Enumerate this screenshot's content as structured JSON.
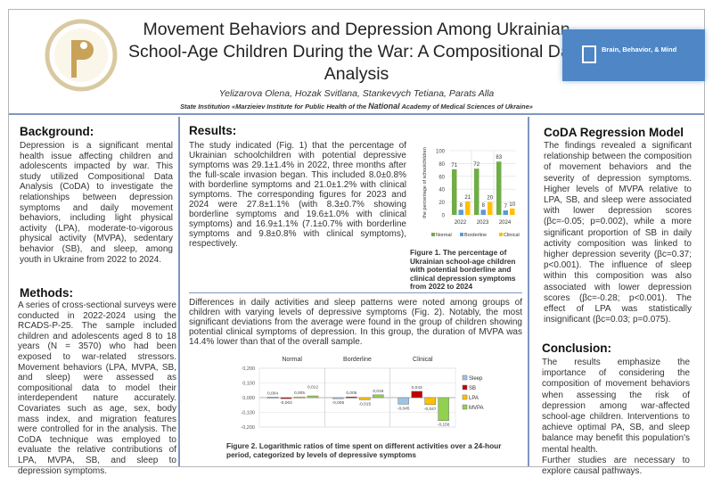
{
  "header": {
    "title": "Movement Behaviors and Depression Among Ukrainian School-Age Children During the War: A Compositional Data Analysis",
    "authors": "Yelizarova Olena, Hozak Svitlana, Stankevych Tetiana, Parats Alla",
    "affiliation_pre": "State Institution «Marzieiev Institute for Public Health of the ",
    "affiliation_mid": "National",
    "affiliation_post": " Academy of Medical Sciences of Ukraine»",
    "journal_logo": "Brain, Behavior, & Mind"
  },
  "background": {
    "heading": "Background:",
    "text": "Depression is a significant mental health issue affecting children and adolescents impacted by war. This study utilized Compositional Data Analysis (CoDA) to investigate the relationships between depression symptoms and daily movement behaviors, including light physical activity (LPA), moderate-to-vigorous physical activity (MVPA), sedentary behavior (SB), and sleep, among youth in Ukraine from 2022 to 2024."
  },
  "methods": {
    "heading": "Methods:",
    "text": "A series of cross-sectional surveys were conducted in 2022-2024 using the RCADS-P-25. The sample included children and adolescents aged 8 to 18 years (N = 3570) who had been exposed to war-related stressors. Movement behaviors (LPA, MVPA, SB, and sleep) were assessed as compositional data to model their interdependent nature accurately. Covariates such as age, sex, body mass index, and migration features were controlled for in the analysis. The CoDA technique was employed to evaluate the relative contributions of LPA, MVPA, SB, and sleep to depression symptoms."
  },
  "results": {
    "heading": "Results:",
    "text1": "The study indicated (Fig. 1) that the percentage of Ukrainian schoolchildren with potential depressive symptoms was 29.1±1.4% in 2022, three months after the full-scale invasion began. This included 8.0±0.8% with borderline symptoms and 21.0±1.2% with clinical symptoms. The corresponding figures for 2023 and 2024 were 27.8±1.1% (with 8.3±0.7% showing borderline symptoms and 19.6±1.0% with clinical symptoms) and 16.9±1.1% (7.1±0.7% with borderline symptoms and 9.8±0.8% with clinical symptoms), respectively.",
    "text2": "Differences in daily activities and sleep patterns were noted among groups of children with varying levels of depressive symptoms (Fig. 2). Notably, the most significant deviations from the average were found in the group of children showing potential clinical symptoms of depression. In this group, the duration of MVPA was 14.4% lower than that of the overall sample.",
    "fig1_caption_label": "Figure 1.",
    "fig1_caption": " The percentage of Ukrainian school-age children with potential borderline and clinical depression symptoms from 2022 to 2024",
    "fig2_caption_label": "Figure 2.",
    "fig2_caption": " Logarithmic ratios of time spent on different activities over a 24-hour period, categorized by levels of depressive symptoms"
  },
  "coda": {
    "heading": "CoDA Regression Model",
    "text": "The findings revealed a significant relationship between the composition of movement behaviors and the severity of depression symptoms. Higher levels of MVPA relative to LPA, SB, and sleep were associated with lower depression scores (βc=-0.05; p=0.002), while a more significant proportion of SB in daily activity composition was linked to higher depression severity (βc=0.37; p<0.001). The influence of sleep within this composition was also associated with lower depression scores (βc=-0.28; p<0.001). The effect of LPA was statistically insignificant (βc=0.03; p=0.075)."
  },
  "conclusion": {
    "heading": "Conclusion:",
    "text": "The results emphasize the importance of considering the composition of movement behaviors when assessing the risk of depression among war-affected school-age children. Interventions to achieve optimal PA, SB, and sleep balance may benefit this population's mental health.",
    "text2": "Further studies are necessary to explore causal pathways."
  },
  "chart_data": [
    {
      "type": "bar",
      "ylabel": "the percentage of schoolchildren",
      "categories": [
        "2022",
        "2023",
        "2024"
      ],
      "ylim": [
        0,
        100
      ],
      "yticks": [
        "0",
        "20",
        "40",
        "60",
        "80",
        "100"
      ],
      "grid": true,
      "legend": "bottom",
      "series": [
        {
          "name": "Normal",
          "values": [
            71,
            72,
            83
          ],
          "color": "#70ad47"
        },
        {
          "name": "Borderline",
          "values": [
            8,
            8,
            7
          ],
          "color": "#5b9bd5"
        },
        {
          "name": "Clinical",
          "values": [
            21,
            20,
            10
          ],
          "color": "#ffc000"
        }
      ]
    },
    {
      "type": "bar",
      "categories": [
        "Normal",
        "Borderline",
        "Clinical"
      ],
      "ylim": [
        -0.2,
        0.2
      ],
      "yticks": [
        "-0,200",
        "-0,100",
        "0,000",
        "0,100",
        "0,200"
      ],
      "grid": true,
      "legend": "right",
      "series": [
        {
          "name": "Sleep",
          "values": [
            0.004,
            -0.005,
            -0.045
          ],
          "labels": [
            "0,004",
            "-0,005",
            "-0,045"
          ],
          "color": "#9dc3e6"
        },
        {
          "name": "SB",
          "values": [
            -0.004,
            0.005,
            0.043
          ],
          "labels": [
            "-0,004",
            "0,005",
            "0,043"
          ],
          "color": "#c00000"
        },
        {
          "name": "LPA",
          "values": [
            0.005,
            -0.015,
            -0.047
          ],
          "labels": [
            "0,005",
            "-0,015",
            "-0,047"
          ],
          "color": "#ffc000"
        },
        {
          "name": "MVPA",
          "values": [
            0.012,
            0.019,
            -0.156
          ],
          "labels": [
            "0,012",
            "0,019",
            "-0,156"
          ],
          "color": "#92d050"
        }
      ]
    }
  ]
}
